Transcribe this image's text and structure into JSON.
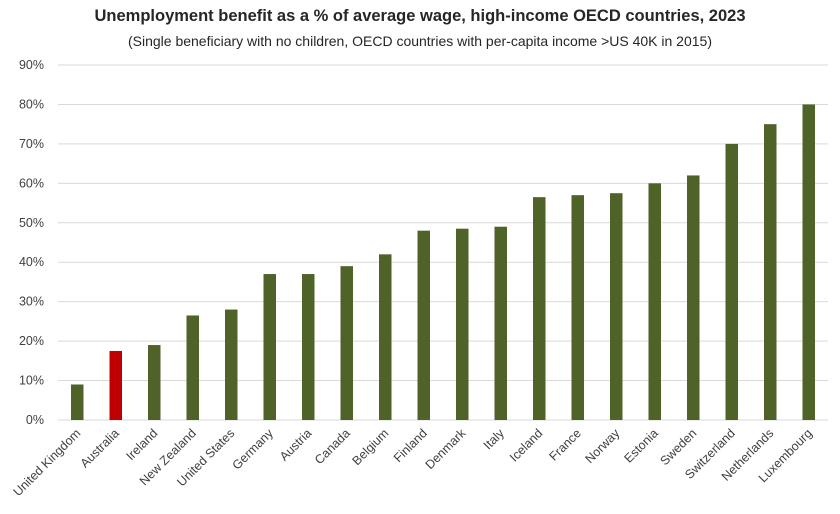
{
  "chart_data": {
    "type": "bar",
    "title": "Unemployment benefit as a % of average wage, high-income OECD countries, 2023",
    "subtitle": "(Single beneficiary with no children, OECD countries with per-capita income >US 40K in 2015)",
    "categories": [
      "United Kingdom",
      "Australia",
      "Ireland",
      "New Zealand",
      "United States",
      "Germany",
      "Austria",
      "Canada",
      "Belgium",
      "Finland",
      "Denmark",
      "Italy",
      "Iceland",
      "France",
      "Norway",
      "Estonia",
      "Sweden",
      "Switzerland",
      "Netherlands",
      "Luxembourg"
    ],
    "values": [
      9,
      17.5,
      19,
      26.5,
      28,
      37,
      37,
      39,
      42,
      48,
      48.5,
      49,
      56.5,
      57,
      57.5,
      60,
      62,
      70,
      75,
      80
    ],
    "highlight_category": "Australia",
    "ylim": [
      0,
      90
    ],
    "yticks": [
      0,
      10,
      20,
      30,
      40,
      50,
      60,
      70,
      80,
      90
    ],
    "ytick_suffix": "%",
    "grid": true,
    "legend": "none",
    "colors": {
      "bar": "#4f6228",
      "highlight": "#c00000",
      "grid": "#d9d9d9"
    }
  }
}
